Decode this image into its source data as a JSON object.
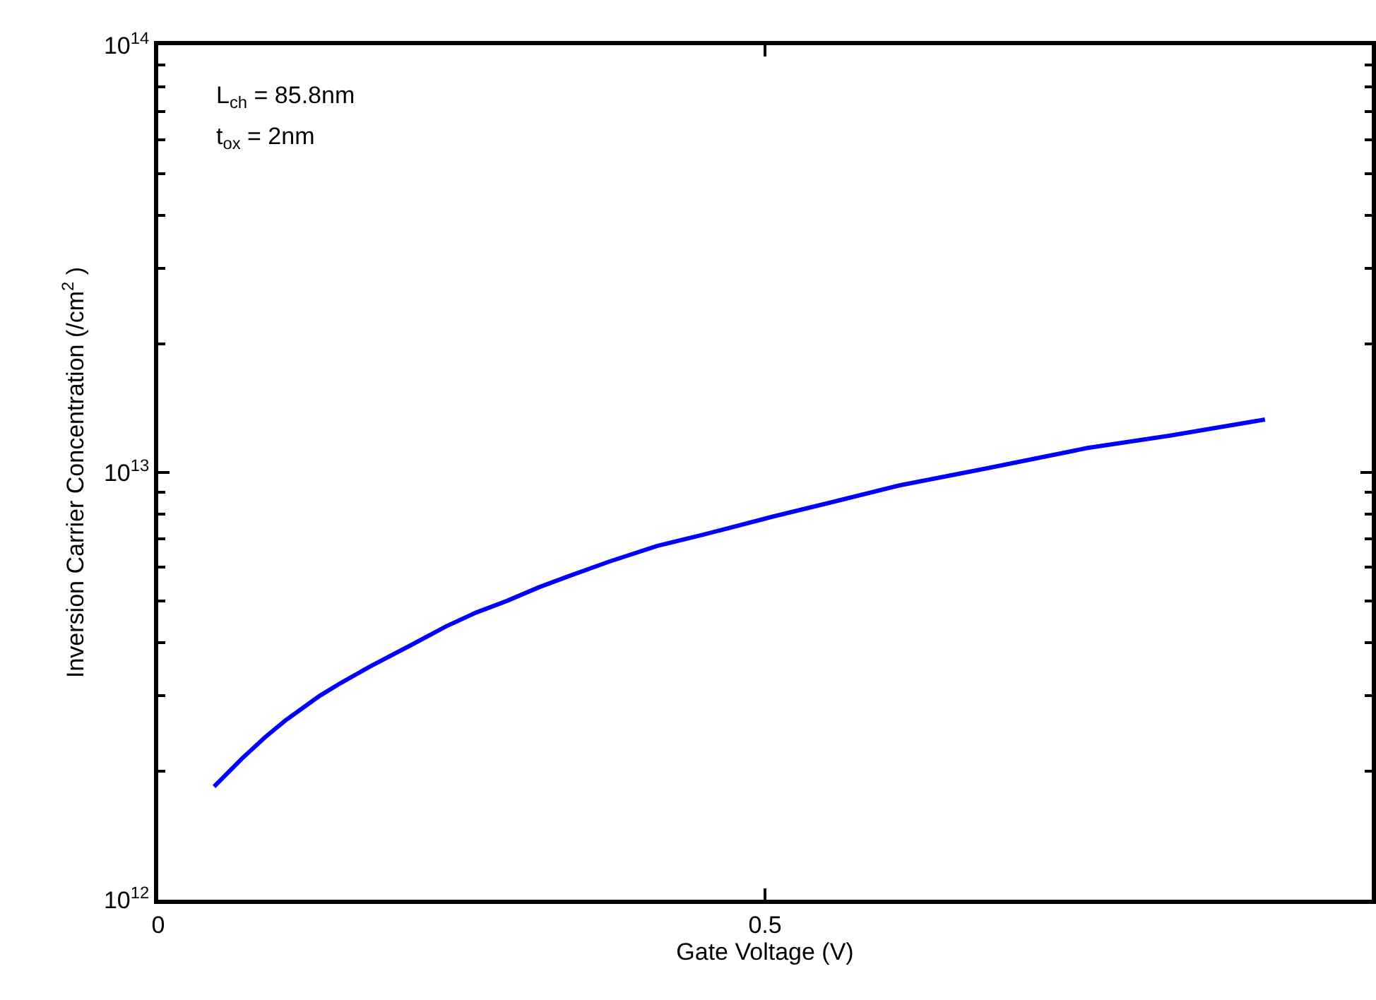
{
  "chart_data": {
    "type": "line",
    "xlabel": "Gate Voltage (V)",
    "ylabel": "Inversion Carrier Concentration (/cm$^{2}$ )",
    "annotations": [
      "L$_{ch}$ = 85.8nm",
      "t$_{ox}$ = 2nm"
    ],
    "log": "y",
    "marker": "none",
    "line_style": "solid",
    "xlim": [
      0,
      1
    ],
    "xticks": [
      0,
      0.5
    ],
    "ylim": [
      1000000000000.0,
      100000000000000.0
    ],
    "yticks": [
      {
        "value": 1000000000000.0,
        "label": "10$^{12}$"
      },
      {
        "value": 10000000000000.0,
        "label": "10$^{13}$"
      },
      {
        "value": 100000000000000.0,
        "label": "10$^{14}$"
      }
    ],
    "series": [
      {
        "color": "#0000ff",
        "x": [
          0.046,
          0.069,
          0.088,
          0.105,
          0.133,
          0.15,
          0.175,
          0.208,
          0.237,
          0.262,
          0.287,
          0.314,
          0.339,
          0.372,
          0.411,
          0.449,
          0.507,
          0.55,
          0.611,
          0.681,
          0.765,
          0.834,
          0.912
        ],
        "values": [
          1840000000000.0,
          2140000000000.0,
          2400000000000.0,
          2630000000000.0,
          3000000000000.0,
          3210000000000.0,
          3520000000000.0,
          3940000000000.0,
          4360000000000.0,
          4700000000000.0,
          5000000000000.0,
          5390000000000.0,
          5730000000000.0,
          6190000000000.0,
          6730000000000.0,
          7150000000000.0,
          7890000000000.0,
          8450000000000.0,
          9330000000000.0,
          10200000000000.0,
          11400000000000.0,
          12200000000000.0,
          13300000000000.0
        ]
      }
    ]
  }
}
